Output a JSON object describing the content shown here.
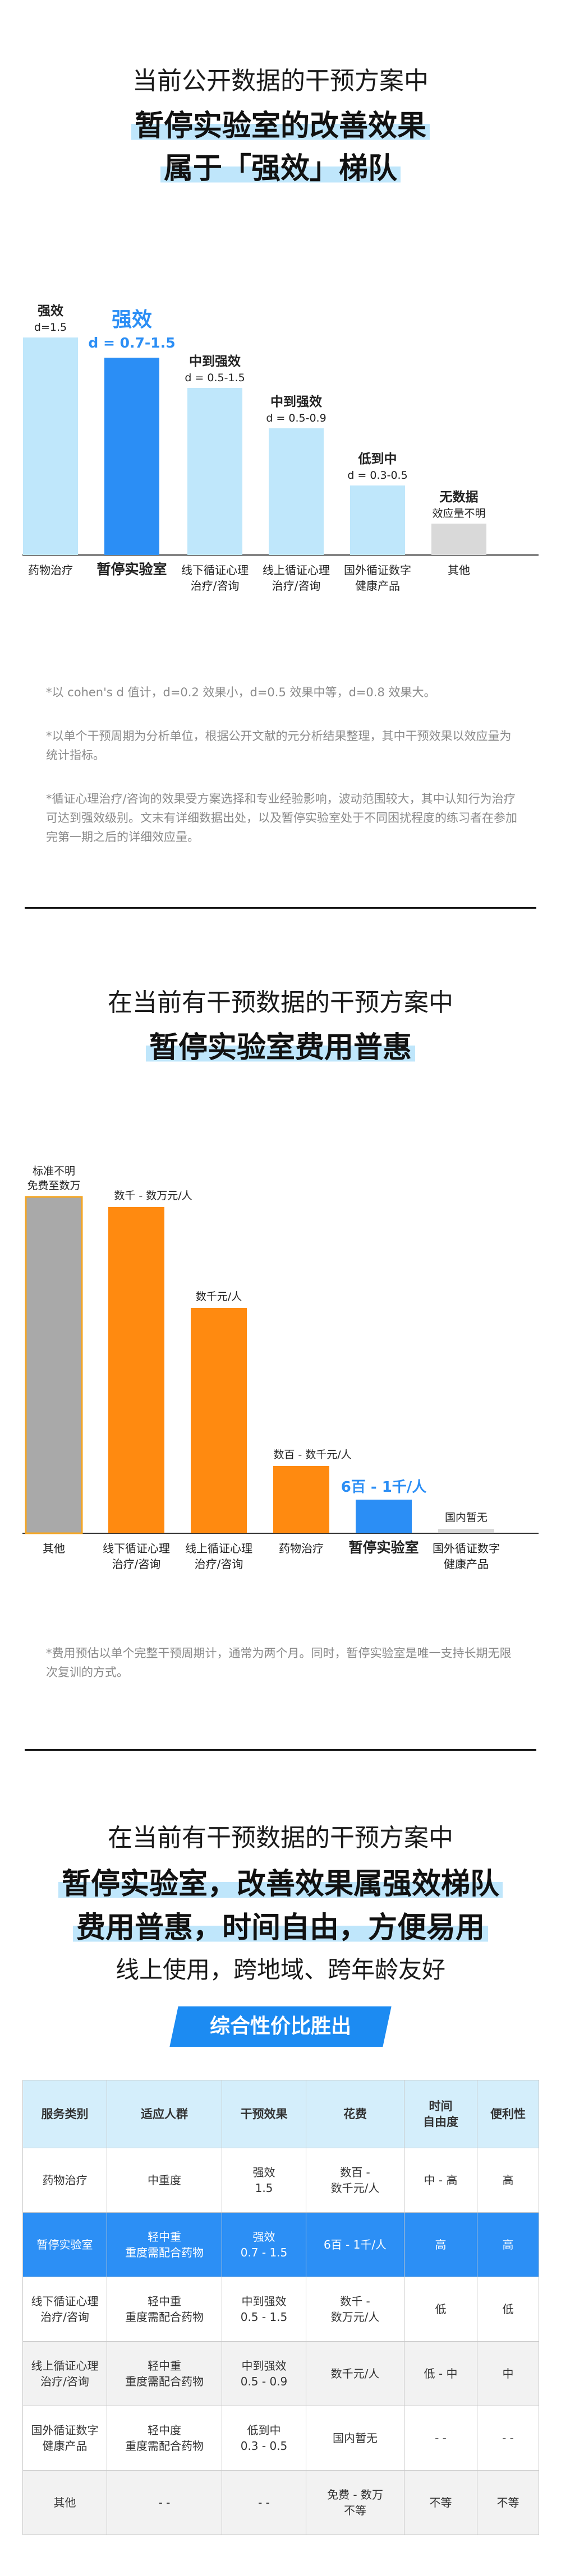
{
  "section1": {
    "line1": "当前公开数据的干预方案中",
    "line2": "暂停实验室的改善效果",
    "line3": "属于「强效」梯队",
    "notes": [
      "*以 cohen's d 值计，d=0.2 效果小，d=0.5 效果中等，d=0.8 效果大。",
      "*以单个干预周期为分析单位，根据公开文献的元分析结果整理，其中干预效果以效应量为统计指标。",
      "*循证心理治疗/咨询的效果受方案选择和专业经验影响，波动范围较大，其中认知行为治疗可达到强效级别。文末有详细数据出处，以及暂停实验室处于不同困扰程度的练习者在参加完第一期之后的详细效应量。"
    ]
  },
  "section2": {
    "line1": "在当前有干预数据的干预方案中",
    "line2": "暂停实验室费用普惠",
    "notes": [
      "*费用预估以单个完整干预周期计，通常为两个月。同时，暂停实验室是唯一支持长期无限次复训的方式。"
    ]
  },
  "section3": {
    "line1": "在当前有干预数据的干预方案中",
    "line2": "暂停实验室，改善效果属强效梯队",
    "line3": "费用普惠，时间自由，方便易用",
    "line4": "线上使用，跨地域、跨年龄友好",
    "banner": "综合性价比胜出",
    "table": {
      "headers": [
        "服务类别",
        "适应人群",
        "干预效果",
        "花费",
        "时间\n自由度",
        "便利性"
      ],
      "rows": [
        [
          "药物治疗",
          "中重度",
          "强效\n1.5",
          "数百 -\n数千元/人",
          "中 - 高",
          "高"
        ],
        [
          "暂停实验室",
          "轻中重\n重度需配合药物",
          "强效\n0.7 - 1.5",
          "6百 - 1千/人",
          "高",
          "高"
        ],
        [
          "线下循证心理\n治疗/咨询",
          "轻中重\n重度需配合药物",
          "中到强效\n0.5 - 1.5",
          "数千 -\n数万元/人",
          "低",
          "低"
        ],
        [
          "线上循证心理\n治疗/咨询",
          "轻中重\n重度需配合药物",
          "中到强效\n0.5 - 0.9",
          "数千元/人",
          "低 - 中",
          "中"
        ],
        [
          "国外循证数字\n健康产品",
          "轻中度\n重度需配合药物",
          "低到中\n0.3 - 0.5",
          "国内暂无",
          "- -",
          "- -"
        ],
        [
          "其他",
          "- -",
          "- -",
          "免费 - 数万\n不等",
          "不等",
          "不等"
        ]
      ],
      "highlight_row": 1
    }
  },
  "chart_data": [
    {
      "type": "bar",
      "categories": [
        "药物治疗",
        "暂停实验室",
        "线下循证心理治疗/咨询",
        "线上循证心理治疗/咨询",
        "国外循证数字健康产品",
        "其他"
      ],
      "values": [
        1.5,
        1.5,
        1.5,
        0.9,
        0.5,
        null
      ],
      "ranges": [
        [
          1.5,
          1.5
        ],
        [
          0.7,
          1.5
        ],
        [
          0.5,
          1.5
        ],
        [
          0.5,
          0.9
        ],
        [
          0.3,
          0.5
        ],
        null
      ],
      "tiers": [
        "强效",
        "强效",
        "中到强效",
        "中到强效",
        "低到中",
        "无数据"
      ],
      "value_labels": [
        "d=1.5",
        "d = 0.7-1.5",
        "d = 0.5-1.5",
        "d = 0.5-0.9",
        "d = 0.3-0.5",
        "效应量不明"
      ],
      "highlight_index": 1,
      "colors": {
        "normal": "#bfe7fb",
        "highlight": "#2b8ef5",
        "none": "#d9d9d9"
      },
      "title": "",
      "xlabel": "",
      "ylabel": ""
    },
    {
      "type": "bar",
      "categories": [
        "其他",
        "线下循证心理治疗/咨询",
        "线上循证心理治疗/咨询",
        "药物治疗",
        "暂停实验室",
        "国外循证数字健康产品"
      ],
      "values": [
        10,
        9.7,
        6.7,
        2.0,
        1.0,
        0.1
      ],
      "value_labels": [
        "标准不明\n免费至数万",
        "数千 - 数万元/人",
        "数千元/人",
        "数百 - 数千元/人",
        "6百 - 1千/人",
        "国内暂无"
      ],
      "highlight_index": 4,
      "colors": {
        "other": "#a9a9a9",
        "normal": "#ff8a10",
        "highlight": "#2b8ef5",
        "none": "#d9d9d9"
      },
      "title": "",
      "xlabel": "",
      "ylabel": ""
    }
  ]
}
